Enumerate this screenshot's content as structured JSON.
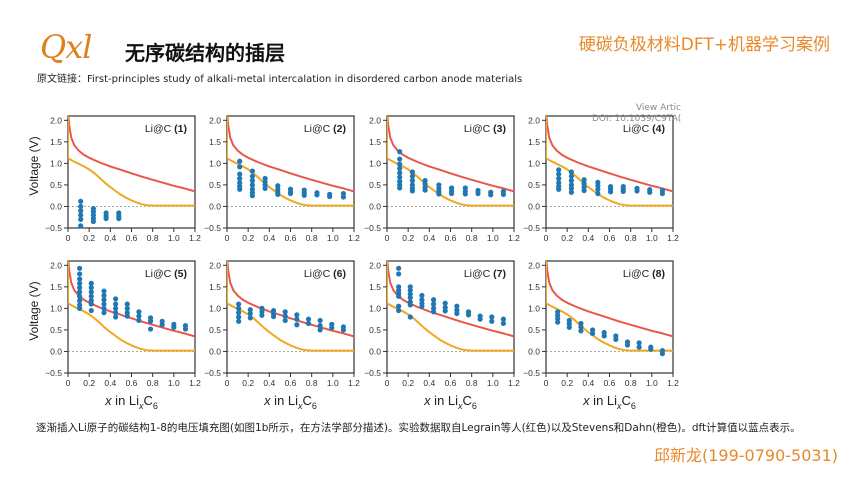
{
  "header": {
    "logo_text": "Qxl",
    "title": "无序碳结构的插层",
    "top_right_label": "硬碳负极材料DFT+机器学习案例",
    "source_label": "原文链接：",
    "source_text": "First-principles study of alkali-metal intercalation in disordered  carbon anode materials"
  },
  "doi_overlay": {
    "line1": "View Artic",
    "line2": "DOI: 10.1039/C9TA("
  },
  "caption": "逐渐插入Li原子的碳结构1-8的电压填充图(如图1b所示，在方法学部分描述)。实验数据取自Legrain等人(红色)以及Stevens和Dahn(橙色)。dft计算值以蓝点表示。",
  "contact": "邱新龙(199-0790-5031)",
  "colors": {
    "accent": "#e8892a",
    "red_curve": "#e8574a",
    "orange_curve": "#f0a820",
    "dft_points": "#1f77b4",
    "axis": "#333333"
  },
  "chart_data": {
    "type": "scatter",
    "layout": "2x4 grid",
    "ylabel": "Voltage (V)",
    "xlabel": "x in LixC6",
    "xlim": [
      0,
      1.2
    ],
    "ylim": [
      -0.5,
      2.1
    ],
    "xticks": [
      "0",
      "0.2",
      "0.4",
      "0.6",
      "0.8",
      "1.0",
      "1.2"
    ],
    "yticks": [
      "2.0",
      "1.5",
      "1.0",
      "0.5",
      "0.0",
      "-0.5"
    ],
    "xtick_values": [
      0,
      0.2,
      0.4,
      0.6,
      0.8,
      1.0,
      1.2
    ],
    "ytick_values": [
      2.0,
      1.5,
      1.0,
      0.5,
      0.0,
      -0.5
    ],
    "reference_line_y": 0,
    "experimental_curves": [
      {
        "name": "Legrain et al. (red)",
        "x": [
          0.0,
          0.01,
          0.03,
          0.06,
          0.1,
          0.15,
          0.2,
          0.3,
          0.4,
          0.5,
          0.6,
          0.7,
          0.8,
          0.9,
          1.0,
          1.1,
          1.2
        ],
        "y": [
          2.2,
          1.9,
          1.6,
          1.42,
          1.3,
          1.2,
          1.13,
          1.02,
          0.93,
          0.85,
          0.77,
          0.69,
          0.62,
          0.55,
          0.48,
          0.42,
          0.35
        ]
      },
      {
        "name": "Stevens and Dahn (orange)",
        "x": [
          0.0,
          0.0,
          0.05,
          0.1,
          0.15,
          0.2,
          0.25,
          0.3,
          0.35,
          0.4,
          0.45,
          0.5,
          0.55,
          0.6,
          0.65,
          0.7,
          0.75,
          0.8,
          0.9,
          1.0,
          1.1,
          1.2
        ],
        "y": [
          2.2,
          1.12,
          1.05,
          0.99,
          0.93,
          0.86,
          0.77,
          0.66,
          0.55,
          0.45,
          0.36,
          0.27,
          0.2,
          0.14,
          0.09,
          0.05,
          0.03,
          0.02,
          0.02,
          0.02,
          0.02,
          0.02
        ]
      }
    ],
    "panels": [
      {
        "label": "Li@C",
        "index": "(1)",
        "dft_points": [
          {
            "x": 0.12,
            "y": [
              0.12,
              0.0,
              -0.1,
              -0.2,
              -0.3,
              -0.45
            ]
          },
          {
            "x": 0.24,
            "y": [
              -0.05,
              -0.12,
              -0.2,
              -0.28,
              -0.35
            ]
          },
          {
            "x": 0.36,
            "y": [
              -0.15,
              -0.22,
              -0.28
            ]
          },
          {
            "x": 0.48,
            "y": [
              -0.15,
              -0.22,
              -0.28
            ]
          }
        ]
      },
      {
        "label": "Li@C",
        "index": "(2)",
        "dft_points": [
          {
            "x": 0.12,
            "y": [
              1.05,
              0.92,
              0.75,
              0.65,
              0.55,
              0.47,
              0.4
            ]
          },
          {
            "x": 0.24,
            "y": [
              0.82,
              0.7,
              0.6,
              0.5,
              0.4,
              0.32,
              0.25
            ]
          },
          {
            "x": 0.36,
            "y": [
              0.65,
              0.57,
              0.5,
              0.42
            ]
          },
          {
            "x": 0.48,
            "y": [
              0.48,
              0.4,
              0.33,
              0.28
            ]
          },
          {
            "x": 0.6,
            "y": [
              0.4,
              0.33,
              0.3
            ]
          },
          {
            "x": 0.73,
            "y": [
              0.38,
              0.32,
              0.26
            ]
          },
          {
            "x": 0.85,
            "y": [
              0.32,
              0.27
            ]
          },
          {
            "x": 0.97,
            "y": [
              0.28,
              0.23
            ]
          },
          {
            "x": 1.1,
            "y": [
              0.3,
              0.22
            ]
          }
        ]
      },
      {
        "label": "Li@C",
        "index": "(3)",
        "dft_points": [
          {
            "x": 0.12,
            "y": [
              1.27,
              1.1,
              0.98,
              0.88,
              0.78,
              0.68,
              0.58,
              0.5,
              0.43
            ]
          },
          {
            "x": 0.24,
            "y": [
              0.8,
              0.7,
              0.6,
              0.5,
              0.42,
              0.36
            ]
          },
          {
            "x": 0.36,
            "y": [
              0.6,
              0.52,
              0.44,
              0.38
            ]
          },
          {
            "x": 0.49,
            "y": [
              0.5,
              0.42,
              0.35,
              0.29
            ]
          },
          {
            "x": 0.61,
            "y": [
              0.43,
              0.36,
              0.3
            ]
          },
          {
            "x": 0.74,
            "y": [
              0.43,
              0.35,
              0.29
            ]
          },
          {
            "x": 0.86,
            "y": [
              0.37,
              0.3
            ]
          },
          {
            "x": 0.98,
            "y": [
              0.33,
              0.27
            ]
          },
          {
            "x": 1.1,
            "y": [
              0.35,
              0.28
            ]
          }
        ]
      },
      {
        "label": "Li@C",
        "index": "(4)",
        "dft_points": [
          {
            "x": 0.12,
            "y": [
              0.85,
              0.75,
              0.65,
              0.55,
              0.47,
              0.4
            ]
          },
          {
            "x": 0.24,
            "y": [
              0.8,
              0.7,
              0.6,
              0.5,
              0.42,
              0.33
            ]
          },
          {
            "x": 0.36,
            "y": [
              0.62,
              0.53,
              0.45,
              0.37
            ]
          },
          {
            "x": 0.49,
            "y": [
              0.56,
              0.48,
              0.4,
              0.3
            ]
          },
          {
            "x": 0.61,
            "y": [
              0.46,
              0.4,
              0.34
            ]
          },
          {
            "x": 0.73,
            "y": [
              0.46,
              0.4,
              0.35
            ]
          },
          {
            "x": 0.86,
            "y": [
              0.42,
              0.36
            ]
          },
          {
            "x": 0.98,
            "y": [
              0.39,
              0.33
            ]
          },
          {
            "x": 1.1,
            "y": [
              0.37,
              0.3
            ]
          }
        ]
      },
      {
        "label": "Li@C",
        "index": "(5)",
        "dft_points": [
          {
            "x": 0.11,
            "y": [
              1.93,
              1.8,
              1.68,
              1.58,
              1.48,
              1.38,
              1.28,
              1.18,
              1.08,
              1.0
            ]
          },
          {
            "x": 0.22,
            "y": [
              1.58,
              1.48,
              1.38,
              1.28,
              1.18,
              1.1,
              0.95
            ]
          },
          {
            "x": 0.34,
            "y": [
              1.4,
              1.3,
              1.2,
              1.1,
              1.0,
              0.9
            ]
          },
          {
            "x": 0.45,
            "y": [
              1.22,
              1.1,
              1.0,
              0.9,
              0.8
            ]
          },
          {
            "x": 0.56,
            "y": [
              1.1,
              1.0,
              0.9,
              0.82
            ]
          },
          {
            "x": 0.67,
            "y": [
              0.92,
              0.82,
              0.72
            ]
          },
          {
            "x": 0.78,
            "y": [
              0.78,
              0.7,
              0.52
            ]
          },
          {
            "x": 0.89,
            "y": [
              0.7,
              0.62
            ]
          },
          {
            "x": 1.0,
            "y": [
              0.63,
              0.56
            ]
          },
          {
            "x": 1.11,
            "y": [
              0.6,
              0.52
            ]
          }
        ]
      },
      {
        "label": "Li@C",
        "index": "(6)",
        "dft_points": [
          {
            "x": 0.11,
            "y": [
              1.1,
              1.0,
              0.9,
              0.8,
              0.7
            ]
          },
          {
            "x": 0.22,
            "y": [
              0.97,
              0.88,
              0.78
            ]
          },
          {
            "x": 0.33,
            "y": [
              1.0,
              0.92,
              0.84
            ]
          },
          {
            "x": 0.44,
            "y": [
              0.95,
              0.87,
              0.81
            ]
          },
          {
            "x": 0.55,
            "y": [
              0.92,
              0.82,
              0.72
            ]
          },
          {
            "x": 0.66,
            "y": [
              0.85,
              0.75,
              0.62
            ]
          },
          {
            "x": 0.77,
            "y": [
              0.75,
              0.65
            ]
          },
          {
            "x": 0.88,
            "y": [
              0.72,
              0.6,
              0.5
            ]
          },
          {
            "x": 0.99,
            "y": [
              0.63,
              0.55
            ]
          },
          {
            "x": 1.1,
            "y": [
              0.57,
              0.5
            ]
          }
        ]
      },
      {
        "label": "Li@C",
        "index": "(7)",
        "dft_points": [
          {
            "x": 0.11,
            "y": [
              1.93,
              1.8,
              1.5,
              1.42,
              1.35,
              1.28,
              1.05,
              0.95
            ]
          },
          {
            "x": 0.22,
            "y": [
              1.5,
              1.42,
              1.33,
              1.25,
              1.15,
              1.08,
              0.8
            ]
          },
          {
            "x": 0.33,
            "y": [
              1.3,
              1.2,
              1.12,
              1.05
            ]
          },
          {
            "x": 0.44,
            "y": [
              1.2,
              1.1,
              1.0,
              0.92
            ]
          },
          {
            "x": 0.55,
            "y": [
              1.12,
              1.02,
              0.94
            ]
          },
          {
            "x": 0.66,
            "y": [
              1.05,
              0.96,
              0.88
            ]
          },
          {
            "x": 0.77,
            "y": [
              0.92,
              0.85
            ]
          },
          {
            "x": 0.88,
            "y": [
              0.82,
              0.75
            ]
          },
          {
            "x": 0.99,
            "y": [
              0.8,
              0.7
            ]
          },
          {
            "x": 1.1,
            "y": [
              0.75,
              0.65
            ]
          }
        ]
      },
      {
        "label": "Li@C",
        "index": "(8)",
        "dft_points": [
          {
            "x": 0.11,
            "y": [
              0.92,
              0.84,
              0.76,
              0.68
            ]
          },
          {
            "x": 0.22,
            "y": [
              0.72,
              0.64,
              0.56
            ]
          },
          {
            "x": 0.33,
            "y": [
              0.65,
              0.57,
              0.48
            ]
          },
          {
            "x": 0.44,
            "y": [
              0.5,
              0.42
            ]
          },
          {
            "x": 0.55,
            "y": [
              0.44,
              0.36
            ]
          },
          {
            "x": 0.66,
            "y": [
              0.36,
              0.28
            ]
          },
          {
            "x": 0.77,
            "y": [
              0.22,
              0.15
            ]
          },
          {
            "x": 0.88,
            "y": [
              0.2,
              0.1
            ]
          },
          {
            "x": 0.99,
            "y": [
              0.1,
              0.05
            ]
          },
          {
            "x": 1.1,
            "y": [
              0.02,
              -0.05
            ]
          }
        ]
      }
    ]
  }
}
